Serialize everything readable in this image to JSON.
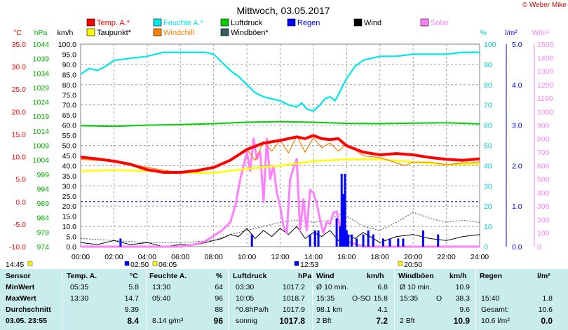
{
  "title": "Mittwoch, 03.05.2017",
  "copyright": "© Weber Mike",
  "units": {
    "temp": "°C",
    "press": "hPa",
    "wind": "km/h",
    "hum": "%",
    "rain": "l/m²",
    "solar": "W/m²"
  },
  "legend": [
    {
      "name": "Temp. A.*",
      "color": "#ff0000"
    },
    {
      "name": "Feuchte A.*",
      "color": "#00e8e8"
    },
    {
      "name": "Luftdruck",
      "color": "#00d000"
    },
    {
      "name": "Regen",
      "color": "#0000ff"
    },
    {
      "name": "Wind",
      "color": "#000000"
    },
    {
      "name": "Solar",
      "color": "#ff7fff"
    },
    {
      "name": "Taupunkt*",
      "color": "#ffff00"
    },
    {
      "name": "Windchill",
      "color": "#ff7f00"
    },
    {
      "name": "Windböen*",
      "color": "#306060"
    }
  ],
  "chart_data": {
    "type": "line",
    "title": "Mittwoch, 03.05.2017",
    "x_ticks": [
      "00:00",
      "02:00",
      "04:00",
      "06:00",
      "08:00",
      "10:00",
      "12:00",
      "14:00",
      "16:00",
      "18:00",
      "20:00",
      "22:00",
      "24:00"
    ],
    "axes": {
      "temp": {
        "label": "°C",
        "ticks": [
          "35.0",
          "30.0",
          "25.0",
          "20.0",
          "15.0",
          "10.0",
          "5.0",
          "0.0",
          "-5.0",
          "-10.0"
        ],
        "ylim": [
          -10,
          35
        ],
        "color": "#ff0000"
      },
      "press": {
        "label": "hPa",
        "ticks": [
          "1044",
          "1039",
          "1034",
          "1029",
          "1024",
          "1019",
          "1014",
          "1009",
          "1004",
          "999",
          "994",
          "989",
          "984",
          "979",
          "974"
        ],
        "ylim": [
          974,
          1044
        ],
        "color": "#00b000"
      },
      "wind": {
        "label": "km/h",
        "ticks": [
          "100.0",
          "95.0",
          "90.0",
          "85.0",
          "80.0",
          "75.0",
          "70.0",
          "65.0",
          "60.0",
          "55.0",
          "50.0",
          "45.0",
          "40.0",
          "35.0",
          "30.0",
          "25.0",
          "20.0",
          "15.0",
          "10.0",
          "5.0",
          "0.0"
        ],
        "ylim": [
          0,
          100
        ],
        "color": "#000000"
      },
      "hum": {
        "label": "%",
        "ticks": [
          "100",
          "90",
          "80",
          "70",
          "60",
          "50",
          "40",
          "30",
          "20",
          "10",
          "0"
        ],
        "ylim": [
          0,
          100
        ],
        "color": "#00c8c8"
      },
      "rain": {
        "label": "l/m²",
        "ticks": [
          "5.0",
          "4.0",
          "3.0",
          "2.0",
          "1.0",
          "0.0"
        ],
        "ylim": [
          0,
          5
        ],
        "color": "#0000ff"
      },
      "solar": {
        "label": "W/m²",
        "ticks": [
          "1500",
          "1400",
          "1300",
          "1200",
          "1100",
          "1000",
          "900",
          "800",
          "700",
          "600",
          "500",
          "400",
          "300",
          "200",
          "100",
          "0"
        ],
        "ylim": [
          0,
          1500
        ],
        "color": "#ff7fff"
      }
    },
    "series": [
      {
        "name": "Feuchte A.*",
        "axis": "hum",
        "color": "#00e8e8",
        "x": [
          0,
          0.5,
          1,
          1.5,
          2,
          3,
          4,
          5,
          6,
          7,
          7.5,
          8,
          8.5,
          9,
          9.5,
          10,
          10.5,
          11,
          11.5,
          12,
          12.5,
          13,
          13.3,
          13.6,
          14,
          14.4,
          14.7,
          15,
          15.3,
          15.5,
          15.8,
          16,
          16.5,
          17,
          17.5,
          18,
          19,
          20,
          21,
          22,
          23,
          24
        ],
        "y": [
          85,
          88,
          87,
          89,
          92,
          93,
          94,
          96,
          96,
          96,
          96,
          95,
          91,
          87,
          84,
          80,
          76,
          74,
          73,
          72,
          70,
          69,
          71,
          68,
          67,
          70,
          73,
          74,
          72,
          75,
          80,
          83,
          89,
          92,
          93,
          94,
          94,
          95,
          95,
          95,
          96,
          96
        ]
      },
      {
        "name": "Luftdruck",
        "axis": "press",
        "color": "#00d000",
        "x": [
          0,
          2,
          4,
          6,
          8,
          10,
          12,
          14,
          16,
          18,
          20,
          22,
          24
        ],
        "y": [
          1015.8,
          1015.6,
          1016.0,
          1016.2,
          1016.5,
          1017.0,
          1017.2,
          1017.0,
          1016.6,
          1016.5,
          1016.7,
          1016.8,
          1016.4
        ]
      },
      {
        "name": "Windböen*",
        "axis": "wind",
        "color": "#306060",
        "x": [
          0,
          2,
          4,
          6,
          8,
          9,
          10,
          11,
          12,
          13,
          14,
          15,
          15.5,
          16,
          17,
          18,
          19,
          20,
          21,
          22,
          23,
          24
        ],
        "y": [
          4,
          3,
          2,
          2,
          3,
          6,
          8,
          10,
          12,
          13,
          12,
          13,
          16,
          15,
          10,
          8,
          12,
          17,
          14,
          12,
          13,
          12
        ]
      },
      {
        "name": "Wind",
        "axis": "wind",
        "color": "#000000",
        "x": [
          0,
          1,
          2,
          3,
          4,
          5,
          6,
          7,
          8,
          8.5,
          9,
          9.5,
          10,
          10.5,
          11,
          11.5,
          12,
          12.5,
          13,
          13.5,
          14,
          14.5,
          15,
          15.5,
          16,
          16.5,
          17,
          18,
          19,
          20,
          21,
          22,
          23,
          24
        ],
        "y": [
          2,
          1,
          3,
          1,
          2,
          0,
          1,
          1,
          3,
          4,
          6,
          5,
          9,
          4,
          8,
          5,
          9,
          6,
          10,
          4,
          7,
          5,
          8,
          3,
          6,
          4,
          7,
          2,
          5,
          6,
          4,
          3,
          5,
          6
        ]
      },
      {
        "name": "Solar",
        "axis": "solar",
        "color": "#ff7fff",
        "x": [
          0,
          6,
          7,
          7.5,
          8,
          8.5,
          9,
          9.3,
          9.6,
          10,
          10.2,
          10.4,
          10.6,
          10.8,
          11,
          11.2,
          11.4,
          11.6,
          11.8,
          12,
          12.2,
          12.4,
          12.6,
          12.8,
          13,
          13.2,
          13.4,
          13.6,
          13.8,
          14,
          14.2,
          14.4,
          14.6,
          14.8,
          15,
          15.2,
          15.4,
          15.6,
          15.8,
          16,
          17,
          24
        ],
        "y": [
          0,
          0,
          20,
          40,
          80,
          120,
          180,
          300,
          500,
          700,
          560,
          800,
          650,
          700,
          330,
          800,
          500,
          600,
          400,
          300,
          150,
          100,
          500,
          580,
          650,
          120,
          350,
          120,
          420,
          400,
          320,
          200,
          100,
          180,
          170,
          250,
          260,
          150,
          120,
          40,
          0,
          0
        ]
      },
      {
        "name": "Taupunkt*",
        "axis": "temp",
        "color": "#ffff00",
        "x": [
          0,
          2,
          4,
          6,
          8,
          10,
          12,
          14,
          16,
          18,
          20,
          22,
          24
        ],
        "y": [
          6.8,
          7.0,
          6.8,
          6.4,
          6.4,
          7.3,
          8.0,
          9.0,
          9.4,
          9.4,
          8.8,
          8.2,
          8.4
        ]
      },
      {
        "name": "Windchill",
        "axis": "temp",
        "color": "#ff7f00",
        "x": [
          0,
          2,
          4,
          6,
          8,
          9,
          10,
          10.5,
          11,
          11.5,
          12,
          12.5,
          13,
          13.5,
          14,
          14.5,
          15,
          15.5,
          16,
          17,
          18,
          19,
          19.5,
          20,
          21,
          22,
          23,
          24
        ],
        "y": [
          9.4,
          8.9,
          7.6,
          6.4,
          7.6,
          9.0,
          11.6,
          9.2,
          13.4,
          11.2,
          13.6,
          10.8,
          14.6,
          11.0,
          14.2,
          12.0,
          13.0,
          11.2,
          12.8,
          10.2,
          9.8,
          8.6,
          8.0,
          8.8,
          8.8,
          8.2,
          8.6,
          8.8
        ]
      },
      {
        "name": "Temp. A.*",
        "axis": "temp",
        "color": "#ff0000",
        "x": [
          0,
          1,
          2,
          3,
          4,
          5,
          6,
          7,
          8,
          9,
          10,
          11,
          12,
          13,
          13.5,
          14,
          14.5,
          15,
          15.5,
          16,
          17,
          18,
          19,
          20,
          21,
          22,
          23,
          24
        ],
        "y": [
          9.9,
          9.5,
          9.0,
          8.3,
          7.1,
          6.5,
          6.5,
          6.9,
          7.6,
          9.2,
          11.6,
          13.0,
          13.6,
          14.4,
          14.0,
          14.7,
          14.0,
          13.8,
          14.0,
          12.4,
          11.0,
          10.4,
          10.7,
          10.4,
          9.8,
          9.4,
          9.2,
          9.5
        ]
      },
      {
        "name": "Regen",
        "axis": "rain",
        "color": "#0000ff",
        "type": "bar",
        "x": [
          2.4,
          10.3,
          13.8,
          14.1,
          14.3,
          15.4,
          15.6,
          15.7,
          15.8,
          15.9,
          16.0,
          16.1,
          16.3,
          16.6,
          17.0,
          17.3,
          17.6,
          18.2,
          18.6,
          19.1,
          19.4,
          20.6,
          21.5
        ],
        "y": [
          0.2,
          0.3,
          0.3,
          0.4,
          0.4,
          0.7,
          0.5,
          1.8,
          1.3,
          1.8,
          0.4,
          0.3,
          0.3,
          0.2,
          0.3,
          0.4,
          0.3,
          0.2,
          0.2,
          0.2,
          0.2,
          0.4,
          0.3
        ]
      }
    ],
    "reference_lines": [
      {
        "axis": "temp",
        "value": 0.0,
        "style": "dashed",
        "color": "#0000c0"
      }
    ],
    "markers": [
      {
        "label": "14:45",
        "color": "#ffff00"
      },
      {
        "label": "02:50",
        "color": "#0000ff"
      },
      {
        "label": "06:05",
        "color": "#ffff00"
      },
      {
        "label": "12:53",
        "color": "#0000ff"
      },
      {
        "label": "20:50",
        "color": "#ffff00"
      }
    ],
    "grid": true,
    "legend_position": "top"
  },
  "stats": {
    "headers": {
      "sensor": "Sensor",
      "temp": "Temp. A.",
      "temp_unit": "°C",
      "hum": "Feuchte A.",
      "hum_unit": "%",
      "press": "Luftdruck",
      "press_unit": "hPa",
      "wind": "Wind",
      "wind_unit": "km/h",
      "gust": "Windböen",
      "gust_unit": "km/h",
      "rain": "Regen",
      "rain_unit": "l/m²"
    },
    "rows": [
      {
        "label": "MinWert",
        "temp_t": "05:35",
        "temp_v": "5.8",
        "hum_t": "13:30",
        "hum_v": "64",
        "press_t": "03:30",
        "press_v": "1017.2",
        "wind_t": "Ø 10 min.",
        "wind_v": "6.8",
        "gust_t": "Ø 10 min.",
        "gust_v": "10.9",
        "rain_t": "",
        "rain_v": ""
      },
      {
        "label": "MaxWert",
        "temp_t": "13:30",
        "temp_v": "14.7",
        "hum_t": "05:40",
        "hum_v": "96",
        "press_t": "10:05",
        "press_v": "1018.7",
        "wind_t": "15:35",
        "wind_m": "O-SO",
        "wind_v": "15.8",
        "gust_t": "15:35",
        "gust_m": "O",
        "gust_v": "38.3",
        "rain_t": "15:40",
        "rain_v": "1.8"
      },
      {
        "label": "Durchschnitt",
        "temp_t": "",
        "temp_v": "9.39",
        "hum_t": "",
        "hum_v": "88",
        "press_t": "^0.8hPa/h",
        "press_v": "1017.9",
        "wind_t": "98.1 km",
        "wind_v": "4.1",
        "gust_t": "",
        "gust_v": "9.6",
        "rain_t": "Gesamt:",
        "rain_v": "10.6"
      },
      {
        "label": "03.05. 23:55",
        "temp_t": "",
        "temp_v": "8.4",
        "hum_t": "8.14 g/m³",
        "hum_v": "96",
        "press_t": "sonnig",
        "press_v": "1017.8",
        "wind_t": "2 Bft",
        "wind_v": "7.2",
        "gust_t": "2 Bft",
        "gust_v": "10.9",
        "rain_t": "10.6 l/m²",
        "rain_v": "0.0"
      }
    ]
  }
}
